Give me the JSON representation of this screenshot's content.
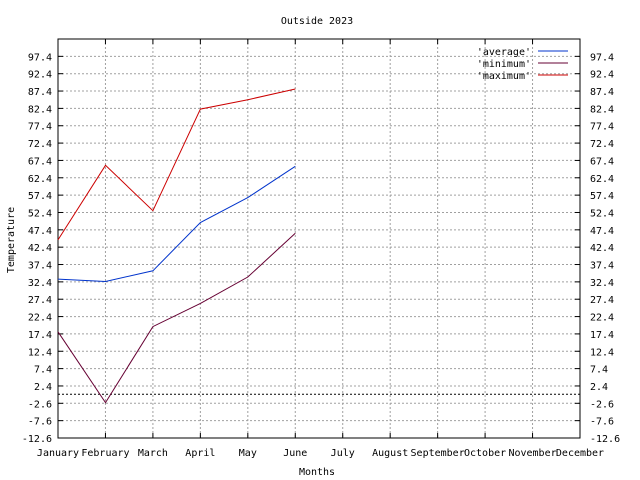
{
  "chart_data": {
    "type": "line",
    "title": "Outside 2023",
    "xlabel": "Months",
    "ylabel": "Temperature",
    "categories": [
      "January",
      "February",
      "March",
      "April",
      "May",
      "June",
      "July",
      "August",
      "September",
      "October",
      "November",
      "December"
    ],
    "yticks": [
      "97.4",
      "92.4",
      "87.4",
      "82.4",
      "77.4",
      "72.4",
      "67.4",
      "62.4",
      "57.4",
      "52.4",
      "47.4",
      "42.4",
      "37.4",
      "32.4",
      "27.4",
      "22.4",
      "17.4",
      "12.4",
      "7.4",
      "2.4",
      "-2.6",
      "-7.6",
      "-12.6"
    ],
    "ylim": [
      -12.6,
      102.4
    ],
    "grid": true,
    "legend_position": "top-right",
    "zero_line": 0,
    "series": [
      {
        "name": "'average'",
        "color": "#0033cc",
        "values": [
          33.2,
          32.5,
          35.6,
          49.5,
          56.7,
          65.7,
          null,
          null,
          null,
          null,
          null,
          null
        ]
      },
      {
        "name": "'minimum'",
        "color": "#660033",
        "values": [
          18.0,
          -2.4,
          19.5,
          26.2,
          33.8,
          46.4,
          null,
          null,
          null,
          null,
          null,
          null
        ]
      },
      {
        "name": "'maximum'",
        "color": "#cc0000",
        "values": [
          44.5,
          66.0,
          52.9,
          82.2,
          84.9,
          88.0,
          null,
          null,
          null,
          null,
          null,
          null
        ]
      }
    ]
  }
}
